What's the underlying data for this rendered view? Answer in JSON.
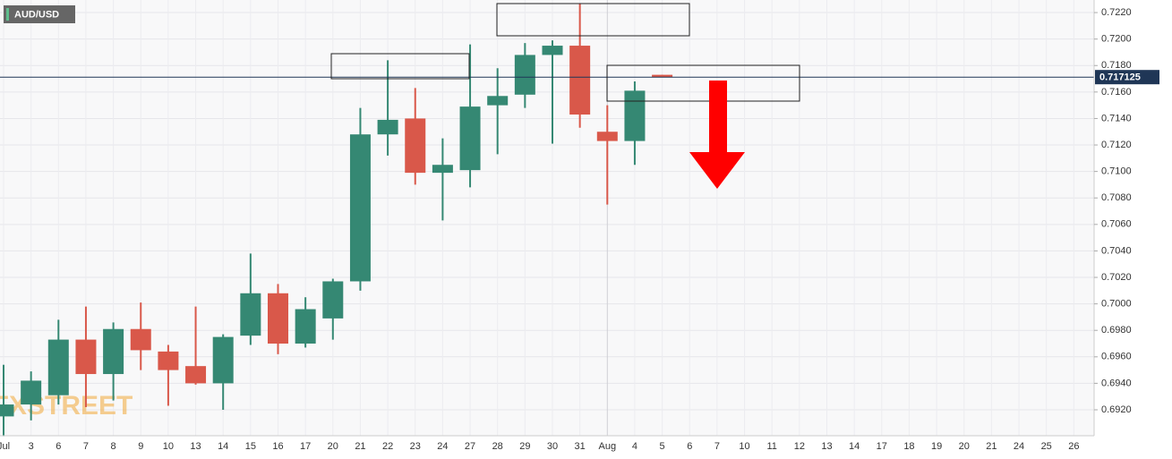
{
  "chart_data": {
    "type": "candlestick",
    "symbol": "AUD/USD",
    "watermark": "FXSTREET",
    "categories": [
      "Jul",
      "3",
      "6",
      "7",
      "8",
      "9",
      "10",
      "13",
      "14",
      "15",
      "16",
      "17",
      "20",
      "21",
      "22",
      "23",
      "24",
      "27",
      "28",
      "29",
      "30",
      "31",
      "Aug",
      "4",
      "5",
      "6",
      "7",
      "10",
      "11",
      "12",
      "13",
      "14",
      "17",
      "18",
      "19",
      "20",
      "21",
      "24",
      "25",
      "26"
    ],
    "open": [
      0.6915,
      0.6924,
      0.6931,
      0.6973,
      0.6947,
      0.6981,
      0.6964,
      0.6953,
      0.694,
      0.6976,
      0.7008,
      0.697,
      0.6989,
      0.7017,
      0.7128,
      0.714,
      0.7099,
      0.7101,
      0.715,
      0.7158,
      0.7188,
      0.7195,
      0.713,
      0.7123,
      0.7173,
      null,
      null,
      null,
      null,
      null,
      null,
      null,
      null,
      null,
      null,
      null,
      null,
      null,
      null,
      null
    ],
    "high": [
      0.6954,
      0.6949,
      0.6988,
      0.6998,
      0.6986,
      0.7001,
      0.6969,
      0.6998,
      0.6977,
      0.7038,
      0.7015,
      0.7005,
      0.7019,
      0.7148,
      0.7184,
      0.7163,
      0.7125,
      0.7196,
      0.7178,
      0.7197,
      0.7199,
      0.7227,
      0.715,
      0.7168,
      0.7173,
      null,
      null,
      null,
      null,
      null,
      null,
      null,
      null,
      null,
      null,
      null,
      null,
      null,
      null,
      null
    ],
    "low": [
      0.69,
      0.6912,
      0.6924,
      0.6922,
      0.6927,
      0.695,
      0.6923,
      0.6939,
      0.692,
      0.6969,
      0.6962,
      0.6967,
      0.6973,
      0.701,
      0.7112,
      0.709,
      0.7063,
      0.7088,
      0.7113,
      0.7148,
      0.7121,
      0.7133,
      0.7075,
      0.7105,
      0.717125,
      null,
      null,
      null,
      null,
      null,
      null,
      null,
      null,
      null,
      null,
      null,
      null,
      null,
      null,
      null
    ],
    "close": [
      0.6924,
      0.6942,
      0.6973,
      0.6947,
      0.6981,
      0.6965,
      0.695,
      0.694,
      0.6975,
      0.7008,
      0.697,
      0.6996,
      0.7017,
      0.7128,
      0.7139,
      0.7099,
      0.7105,
      0.7149,
      0.7157,
      0.7188,
      0.7195,
      0.7143,
      0.7123,
      0.7161,
      0.717125,
      null,
      null,
      null,
      null,
      null,
      null,
      null,
      null,
      null,
      null,
      null,
      null,
      null,
      null,
      null
    ],
    "up_color": "#358873",
    "down_color": "#d9584a",
    "last_price": 0.717125,
    "ylim": [
      0.69004,
      0.72295
    ],
    "yticks": [
      {
        "value": 0.692,
        "label": "0.6920"
      },
      {
        "value": 0.694,
        "label": "0.6940"
      },
      {
        "value": 0.696,
        "label": "0.6960"
      },
      {
        "value": 0.698,
        "label": "0.6980"
      },
      {
        "value": 0.7,
        "label": "0.7000"
      },
      {
        "value": 0.702,
        "label": "0.7020"
      },
      {
        "value": 0.704,
        "label": "0.7040"
      },
      {
        "value": 0.706,
        "label": "0.7060"
      },
      {
        "value": 0.708,
        "label": "0.7080"
      },
      {
        "value": 0.71,
        "label": "0.7100"
      },
      {
        "value": 0.712,
        "label": "0.7120"
      },
      {
        "value": 0.714,
        "label": "0.7140"
      },
      {
        "value": 0.716,
        "label": "0.7160"
      },
      {
        "value": 0.718,
        "label": "0.7180"
      },
      {
        "value": 0.72,
        "label": "0.7200"
      },
      {
        "value": 0.722,
        "label": "0.7220"
      }
    ],
    "grid": true
  }
}
